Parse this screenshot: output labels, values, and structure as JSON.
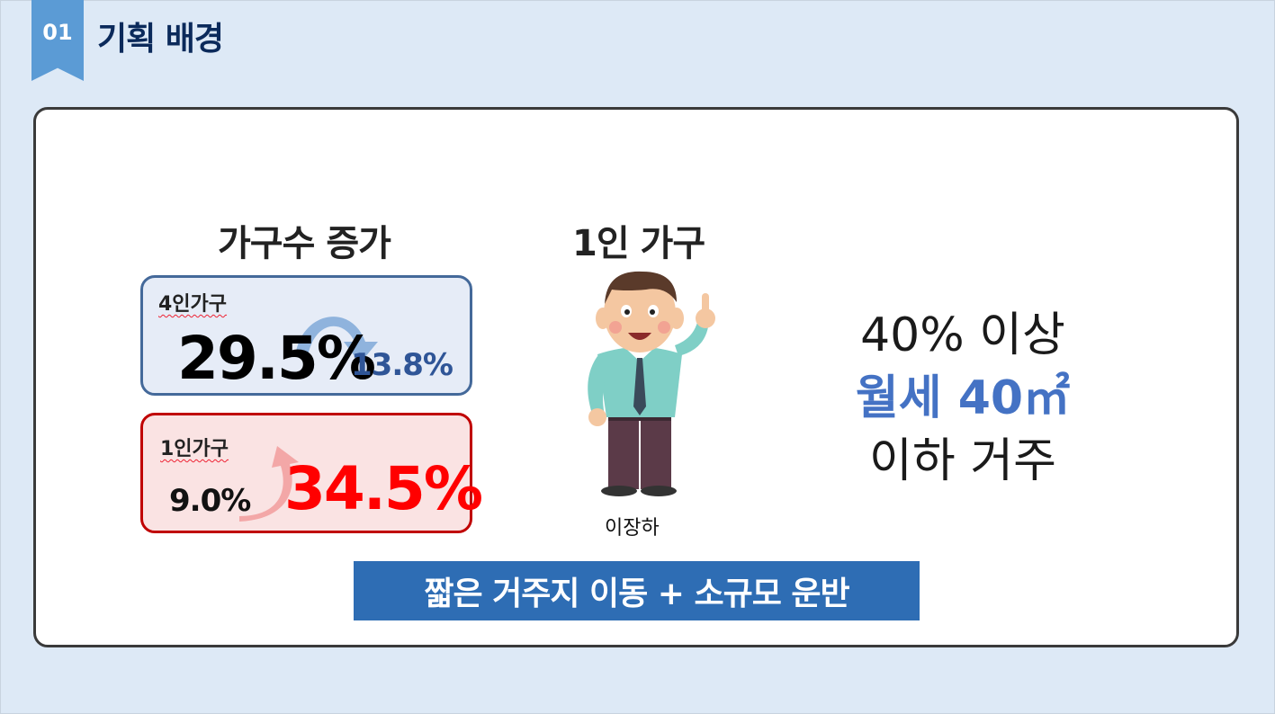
{
  "header": {
    "section_number": "01",
    "section_title": "기획 배경"
  },
  "left": {
    "heading": "가구수 증가",
    "four_person": {
      "label": "4인가구",
      "from": "29.5%",
      "to": "13.8%"
    },
    "one_person": {
      "label": "1인가구",
      "from": "9.0%",
      "to": "34.5%"
    }
  },
  "center": {
    "heading": "1인 가구",
    "person_name": "이장하"
  },
  "right": {
    "line1": "40% 이상",
    "line2": "월세 40㎡",
    "line3": "이하 거주"
  },
  "banner": {
    "text": "짧은 거주지 이동 + 소규모 운반"
  },
  "colors": {
    "accent_blue": "#4472c4",
    "tag_blue": "#5b9bd5",
    "red": "#ff0000",
    "banner": "#2e6db4"
  }
}
